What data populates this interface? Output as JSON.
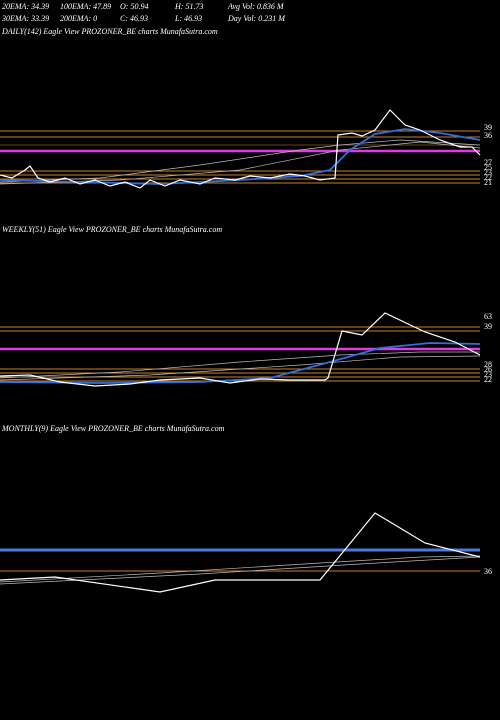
{
  "header": {
    "row1": [
      "20EMA: 34.39",
      "100EMA: 47.89",
      "O: 50.94",
      "H: 51.73",
      "Avg Vol: 0.836  M"
    ],
    "row2": [
      "30EMA: 33.39",
      "200EMA: 0",
      "C: 46.93",
      "L: 46.93",
      "Day Vol: 0.231  M"
    ]
  },
  "panels": [
    {
      "title": "DAILY(142) Eagle  View  PROZONER_BE charts MunafaSutra.com",
      "levels": [
        "39",
        "36",
        "27",
        "25",
        "23",
        "22",
        "21"
      ]
    },
    {
      "title": "WEEKLY(51) Eagle  View  PROZONER_BE charts MunafaSutra.com",
      "levels": [
        "63",
        "39",
        "28",
        "26",
        "23",
        "22"
      ]
    },
    {
      "title": "MONTHLY(9) Eagle  View  PROZONER_BE charts MunafaSutra.com",
      "levels": [
        "36"
      ]
    }
  ]
}
